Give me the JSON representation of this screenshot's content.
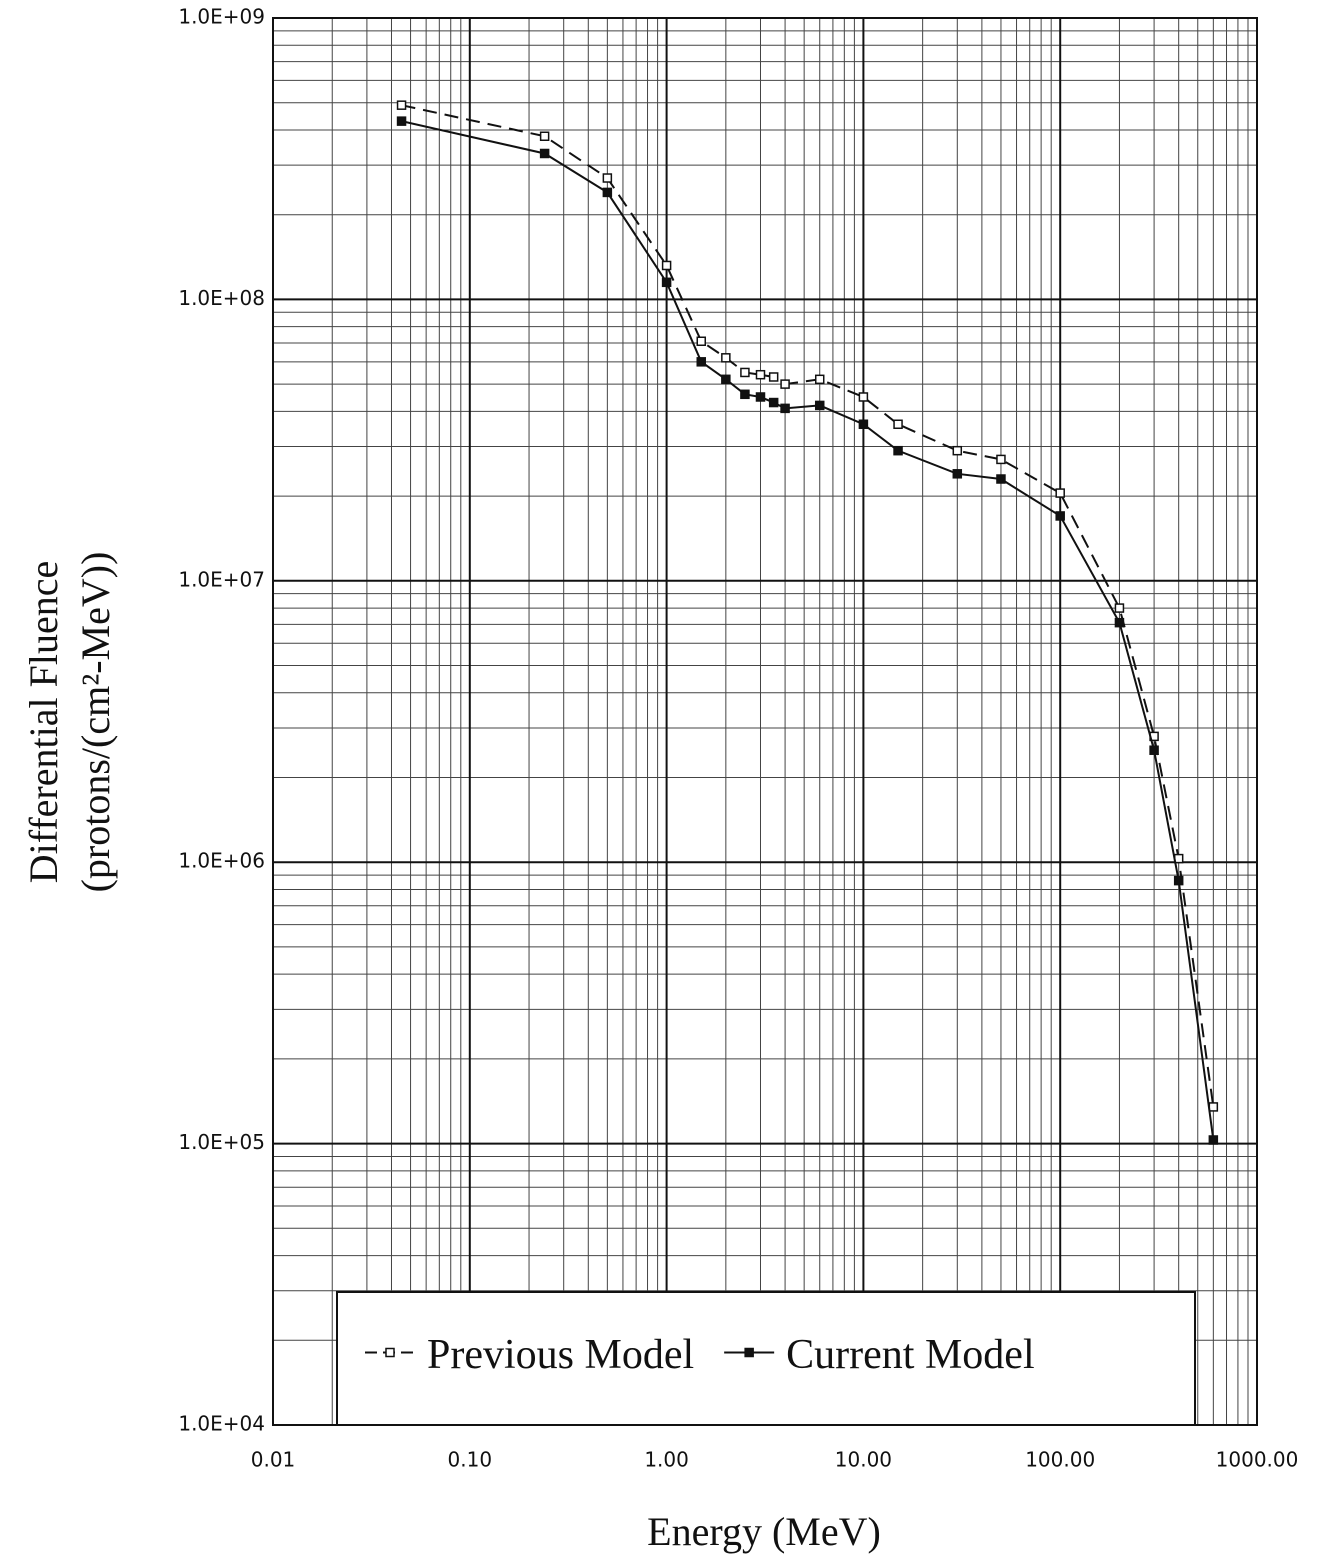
{
  "chart_data": {
    "type": "line",
    "xlabel": "Energy (MeV)",
    "ylabel": [
      "Differential Fluence",
      "(protons/(cm²-MeV))"
    ],
    "xscale": "log",
    "yscale": "log",
    "grid": true,
    "minor_grid": true,
    "legend": "bottom",
    "xlim": [
      0.01,
      1000
    ],
    "ylim": [
      10000,
      1000000000
    ],
    "xticks": [
      0.01,
      {
        "value": 0.1,
        "label": "0.10"
      },
      {
        "value": 1,
        "label": "1.00"
      },
      {
        "value": 10,
        "label": "10.00"
      },
      {
        "value": 100,
        "label": "100.00"
      },
      {
        "value": 1000,
        "label": "1000.00"
      }
    ],
    "yticks": [
      {
        "value": 10000,
        "label": "1.0E+04"
      },
      {
        "value": 100000,
        "label": "1.0E+05"
      },
      {
        "value": 1000000,
        "label": "1.0E+06"
      },
      {
        "value": 10000000,
        "label": "1.0E+07"
      },
      {
        "value": 100000000,
        "label": "1.0E+08"
      },
      {
        "value": 1000000000,
        "label": "1.0E+09"
      }
    ],
    "x": [
      0.045,
      0.24,
      0.5,
      1,
      1.5,
      2,
      2.5,
      3,
      3.5,
      4,
      6,
      10,
      15,
      30,
      50,
      100,
      200,
      300,
      400,
      600
    ],
    "series": [
      {
        "name": "Previous Model",
        "color": "#111111",
        "line_style": "dashed",
        "marker": "open-square",
        "values": [
          490000000,
          380000000,
          270000000,
          132000000,
          71000000,
          62000000,
          55000000,
          54000000,
          53000000,
          50000000,
          52000000,
          45000000,
          36000000,
          29000000,
          27000000,
          20500000,
          8000000,
          2800000,
          1030000,
          135000
        ]
      },
      {
        "name": "Current Model",
        "color": "#111111",
        "line_style": "solid",
        "marker": "filled-square",
        "values": [
          430000000,
          330000000,
          240000000,
          115000000,
          60000000,
          52000000,
          46000000,
          45000000,
          43000000,
          41000000,
          42000000,
          36000000,
          29000000,
          24000000,
          23000000,
          17000000,
          7100000,
          2500000,
          860000,
          103000
        ]
      }
    ]
  }
}
